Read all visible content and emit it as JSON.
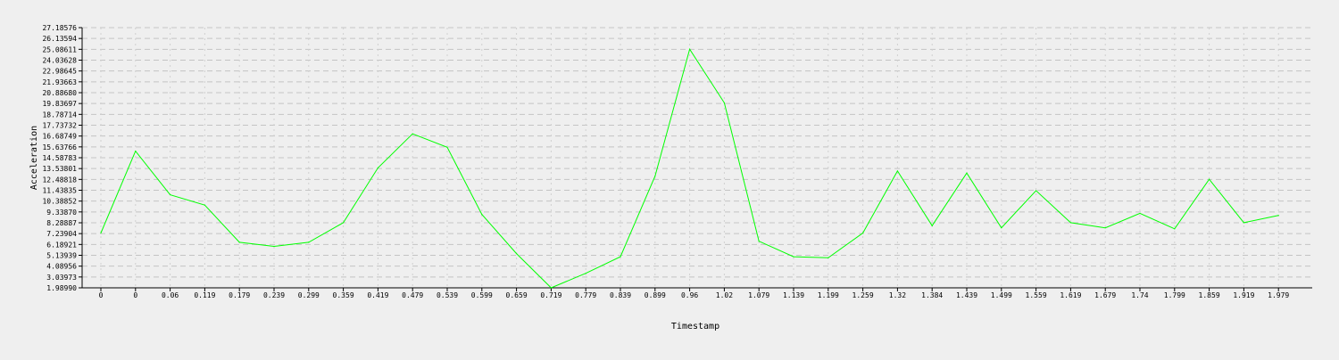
{
  "chart_data": {
    "type": "line",
    "xlabel": "Timestamp",
    "ylabel": "Acceleration",
    "categories": [
      "0",
      "0",
      "0.06",
      "0.119",
      "0.179",
      "0.239",
      "0.299",
      "0.359",
      "0.419",
      "0.479",
      "0.539",
      "0.599",
      "0.659",
      "0.719",
      "0.779",
      "0.839",
      "0.899",
      "0.96",
      "1.02",
      "1.079",
      "1.139",
      "1.199",
      "1.259",
      "1.32",
      "1.384",
      "1.439",
      "1.499",
      "1.559",
      "1.619",
      "1.679",
      "1.74",
      "1.799",
      "1.859",
      "1.919",
      "1.979"
    ],
    "yticks": [
      "1.98990",
      "3.03973",
      "4.08956",
      "5.13939",
      "6.18921",
      "7.23904",
      "8.28887",
      "9.33870",
      "10.38852",
      "11.43835",
      "12.48818",
      "13.53801",
      "14.58783",
      "15.63766",
      "16.68749",
      "17.73732",
      "18.78714",
      "19.83697",
      "20.88680",
      "21.93663",
      "22.98645",
      "24.03628",
      "25.08611",
      "26.13594",
      "27.18576"
    ],
    "ylim": [
      1.9899,
      27.18576
    ],
    "grid": true,
    "series": [
      {
        "color": "#00ff00",
        "values": [
          7.3,
          15.23,
          11.0,
          10.0,
          6.4,
          6.0,
          6.4,
          8.3,
          13.6,
          16.9,
          15.6,
          9.1,
          5.3,
          1.99,
          3.4,
          5.0,
          12.8,
          25.1,
          19.9,
          6.5,
          5.0,
          4.9,
          7.3,
          13.3,
          8.0,
          13.1,
          7.8,
          11.4,
          8.3,
          7.8,
          9.2,
          7.7,
          12.5,
          8.3,
          9.0
        ]
      }
    ]
  }
}
